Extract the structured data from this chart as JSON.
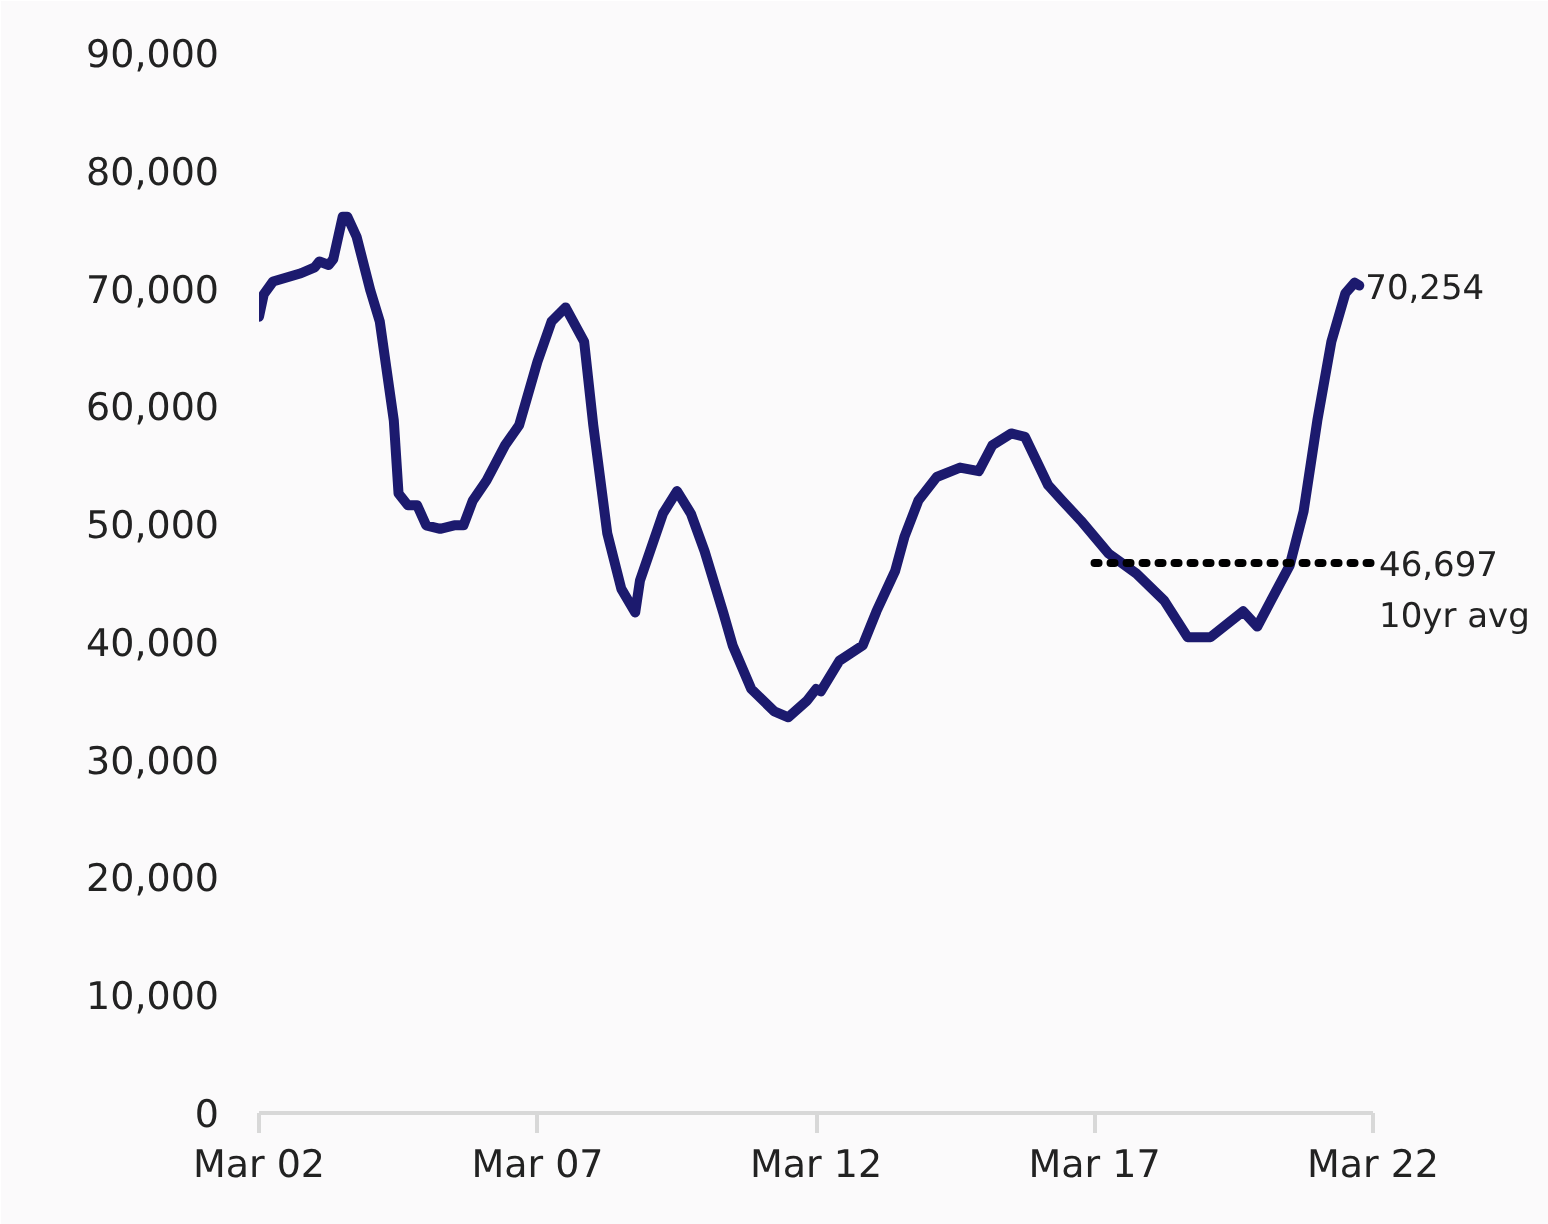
{
  "chart_data": {
    "type": "line",
    "xlim": [
      "2002-03",
      "2022-03"
    ],
    "xticks": [
      {
        "value": "2002-03",
        "label": "Mar 02"
      },
      {
        "value": "2007-03",
        "label": "Mar 07"
      },
      {
        "value": "2012-03",
        "label": "Mar 12"
      },
      {
        "value": "2017-03",
        "label": "Mar 17"
      },
      {
        "value": "2022-03",
        "label": "Mar 22"
      }
    ],
    "ylim": [
      0,
      90000
    ],
    "yticks": [
      0,
      {
        "value": 10000,
        "label": "10,000"
      },
      {
        "value": 20000,
        "label": "20,000"
      },
      {
        "value": 30000,
        "label": "30,000"
      },
      {
        "value": 40000,
        "label": "40,000"
      },
      {
        "value": 50000,
        "label": "50,000"
      },
      {
        "value": 60000,
        "label": "60,000"
      },
      {
        "value": 70000,
        "label": "70,000"
      },
      {
        "value": 80000,
        "label": "80,000"
      },
      {
        "value": 90000,
        "label": "90,000"
      }
    ],
    "grid": false,
    "series": [
      {
        "color": "#1c1a6e",
        "line_style": "solid",
        "x": [
          "2002-03",
          "2002-04",
          "2002-06",
          "2002-12",
          "2003-03",
          "2003-04",
          "2003-06",
          "2003-07",
          "2003-09",
          "2003-10",
          "2003-12",
          "2004-03",
          "2004-05",
          "2004-08",
          "2004-09",
          "2004-11",
          "2005-01",
          "2005-03",
          "2005-06",
          "2005-09",
          "2005-11",
          "2006-01",
          "2006-04",
          "2006-08",
          "2006-11",
          "2007-03",
          "2007-06",
          "2007-09",
          "2008-01",
          "2008-03",
          "2008-06",
          "2008-09",
          "2008-12",
          "2009-01",
          "2009-06",
          "2009-09",
          "2009-12",
          "2010-03",
          "2010-07",
          "2010-09",
          "2011-01",
          "2011-06",
          "2011-09",
          "2012-01",
          "2012-03",
          "2012-04",
          "2012-08",
          "2013-01",
          "2013-04",
          "2013-08",
          "2013-10",
          "2014-01",
          "2014-05",
          "2014-10",
          "2015-02",
          "2015-05",
          "2015-09",
          "2015-12",
          "2016-05",
          "2016-08",
          "2016-12",
          "2017-06",
          "2017-12",
          "2018-06",
          "2018-11",
          "2019-04",
          "2019-11",
          "2020-02",
          "2020-05",
          "2020-09",
          "2020-12",
          "2021-03",
          "2021-06",
          "2021-09",
          "2021-11",
          "2021-12"
        ],
        "values": [
          67600,
          69500,
          70600,
          71300,
          71800,
          72300,
          72000,
          72500,
          76100,
          76100,
          74400,
          69800,
          67200,
          58800,
          52600,
          51600,
          51600,
          49900,
          49600,
          49900,
          49900,
          52000,
          53700,
          56700,
          58400,
          63800,
          67200,
          68400,
          65500,
          58400,
          49200,
          44500,
          42500,
          45200,
          50900,
          52800,
          50900,
          47700,
          42500,
          39700,
          36000,
          34100,
          33600,
          35000,
          36000,
          35800,
          38400,
          39700,
          42600,
          46000,
          48900,
          52000,
          54000,
          54800,
          54500,
          56700,
          57700,
          57400,
          53300,
          52000,
          50300,
          47500,
          45800,
          43500,
          40400,
          40400,
          42600,
          41300,
          43500,
          46500,
          51100,
          58800,
          65500,
          69600,
          70500,
          70254
        ]
      },
      {
        "color": "#000000",
        "line_style": "dotted",
        "x": [
          "2017-03",
          "2022-03"
        ],
        "values": [
          46697,
          46697
        ]
      }
    ],
    "annotations": [
      {
        "text": "70,254",
        "x": "2021-12",
        "y": 70254
      },
      {
        "text": "46,697",
        "x": "2022-03",
        "y": 46697
      },
      {
        "text": "10yr avg",
        "x": "2022-03",
        "y": 46697
      }
    ]
  }
}
